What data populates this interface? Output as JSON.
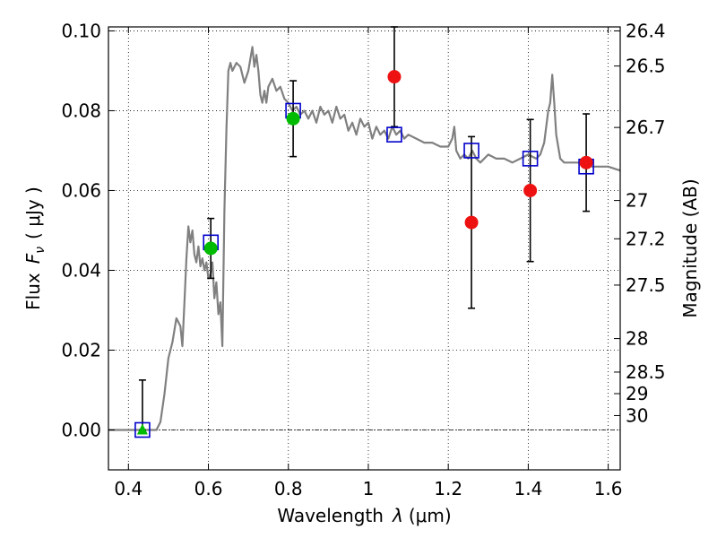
{
  "chart_data": {
    "type": "scatter",
    "title": "",
    "xlabel": "Wavelength",
    "xlabel_symbol": "λ",
    "xlabel_unit": "(μm)",
    "ylabel": "Flux",
    "ylabel_symbol": "F",
    "ylabel_subscript": "ν",
    "ylabel_unit": "( μJy )",
    "ylabel_right": "Magnitude (AB)",
    "xlim": [
      0.35,
      1.63
    ],
    "ylim": [
      -0.01,
      0.101
    ],
    "grid": true,
    "xticks": [
      0.4,
      0.6,
      0.8,
      1.0,
      1.2,
      1.4,
      1.6
    ],
    "xtick_labels": [
      "0.4",
      "0.6",
      "0.8",
      "1",
      "1.2",
      "1.4",
      "1.6"
    ],
    "yticks": [
      0.0,
      0.02,
      0.04,
      0.06,
      0.08,
      0.1
    ],
    "ytick_labels": [
      "0.00",
      "0.02",
      "0.04",
      "0.06",
      "0.08",
      "0.10"
    ],
    "right_ticks": [
      {
        "label": "26.4",
        "flux": 0.1
      },
      {
        "label": "26.5",
        "flux": 0.0912
      },
      {
        "label": "26.7",
        "flux": 0.0758
      },
      {
        "label": "27",
        "flux": 0.0575
      },
      {
        "label": "27.2",
        "flux": 0.0479
      },
      {
        "label": "27.5",
        "flux": 0.0363
      },
      {
        "label": "28",
        "flux": 0.0229
      },
      {
        "label": "28.5",
        "flux": 0.0145
      },
      {
        "label": "29",
        "flux": 0.0091
      },
      {
        "label": "30",
        "flux": 0.0036
      }
    ],
    "colors": {
      "model": "#808080",
      "template_box": "#0000cc",
      "detection": "#00bb00",
      "red_point": "#ee1111",
      "errorbar": "#000000",
      "zero_line": "#000000"
    },
    "series": [
      {
        "name": "model_spectrum",
        "style": "line",
        "x": [
          0.35,
          0.45,
          0.46,
          0.47,
          0.48,
          0.49,
          0.5,
          0.51,
          0.52,
          0.53,
          0.535,
          0.54,
          0.545,
          0.55,
          0.555,
          0.56,
          0.565,
          0.57,
          0.575,
          0.58,
          0.585,
          0.59,
          0.595,
          0.6,
          0.605,
          0.61,
          0.615,
          0.62,
          0.625,
          0.63,
          0.635,
          0.64,
          0.645,
          0.65,
          0.655,
          0.66,
          0.67,
          0.68,
          0.69,
          0.7,
          0.71,
          0.715,
          0.72,
          0.725,
          0.73,
          0.735,
          0.74,
          0.745,
          0.75,
          0.76,
          0.77,
          0.78,
          0.79,
          0.8,
          0.81,
          0.82,
          0.83,
          0.84,
          0.85,
          0.86,
          0.87,
          0.88,
          0.89,
          0.9,
          0.91,
          0.92,
          0.93,
          0.94,
          0.95,
          0.96,
          0.97,
          0.98,
          0.99,
          1.0,
          1.01,
          1.02,
          1.03,
          1.04,
          1.05,
          1.06,
          1.07,
          1.08,
          1.09,
          1.1,
          1.12,
          1.14,
          1.16,
          1.18,
          1.2,
          1.21,
          1.215,
          1.22,
          1.23,
          1.24,
          1.25,
          1.26,
          1.27,
          1.28,
          1.3,
          1.32,
          1.34,
          1.36,
          1.38,
          1.4,
          1.42,
          1.43,
          1.44,
          1.45,
          1.455,
          1.46,
          1.465,
          1.47,
          1.48,
          1.49,
          1.5,
          1.52,
          1.54,
          1.56,
          1.58,
          1.6,
          1.63
        ],
        "values": [
          0.0,
          0.0,
          0.0,
          0.0,
          0.002,
          0.009,
          0.018,
          0.022,
          0.028,
          0.026,
          0.021,
          0.032,
          0.043,
          0.051,
          0.047,
          0.05,
          0.044,
          0.042,
          0.046,
          0.041,
          0.043,
          0.04,
          0.042,
          0.038,
          0.039,
          0.042,
          0.033,
          0.037,
          0.029,
          0.032,
          0.021,
          0.055,
          0.075,
          0.09,
          0.092,
          0.09,
          0.092,
          0.091,
          0.087,
          0.09,
          0.096,
          0.091,
          0.094,
          0.09,
          0.084,
          0.082,
          0.085,
          0.082,
          0.086,
          0.088,
          0.085,
          0.086,
          0.083,
          0.082,
          0.08,
          0.081,
          0.079,
          0.08,
          0.078,
          0.08,
          0.077,
          0.081,
          0.079,
          0.08,
          0.077,
          0.081,
          0.078,
          0.079,
          0.075,
          0.077,
          0.074,
          0.078,
          0.076,
          0.077,
          0.073,
          0.076,
          0.074,
          0.075,
          0.073,
          0.076,
          0.074,
          0.075,
          0.073,
          0.074,
          0.073,
          0.072,
          0.072,
          0.071,
          0.071,
          0.073,
          0.076,
          0.07,
          0.068,
          0.069,
          0.068,
          0.07,
          0.068,
          0.067,
          0.069,
          0.068,
          0.068,
          0.067,
          0.068,
          0.069,
          0.068,
          0.069,
          0.072,
          0.08,
          0.082,
          0.089,
          0.082,
          0.074,
          0.068,
          0.067,
          0.067,
          0.067,
          0.067,
          0.066,
          0.066,
          0.066,
          0.065
        ]
      },
      {
        "name": "template_fluxes",
        "style": "open_square",
        "x": [
          0.435,
          0.606,
          0.812,
          1.065,
          1.258,
          1.405,
          1.545
        ],
        "values": [
          0.0,
          0.047,
          0.08,
          0.074,
          0.07,
          0.068,
          0.066
        ]
      },
      {
        "name": "detections_green",
        "style": "filled_circle",
        "x": [
          0.606,
          0.812
        ],
        "values": [
          0.0455,
          0.078
        ],
        "errors": [
          0.0075,
          0.0095
        ]
      },
      {
        "name": "upper_limit_green",
        "style": "filled_triangle",
        "x": [
          0.435
        ],
        "values": [
          0.0
        ],
        "errors_up": [
          0.0125
        ]
      },
      {
        "name": "measurements_red",
        "style": "filled_circle",
        "x": [
          1.065,
          1.258,
          1.405,
          1.545
        ],
        "values": [
          0.0885,
          0.052,
          0.06,
          0.067
        ],
        "errors": [
          0.0125,
          0.0215,
          0.0178,
          0.0122
        ]
      }
    ]
  }
}
